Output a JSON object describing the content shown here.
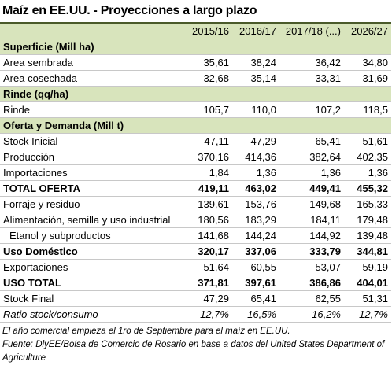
{
  "title": "Maíz en EE.UU. - Proyecciones a largo plazo",
  "columns": [
    "2015/16",
    "2016/17",
    "2017/18 (...)",
    "2026/27"
  ],
  "sections": [
    {
      "title": "Superficie (Mill ha)",
      "rows": [
        {
          "label": "Area sembrada",
          "values": [
            "35,61",
            "38,24",
            "36,42",
            "34,80"
          ]
        },
        {
          "label": "Area cosechada",
          "values": [
            "32,68",
            "35,14",
            "33,31",
            "31,69"
          ]
        }
      ]
    },
    {
      "title": "Rinde (qq/ha)",
      "rows": [
        {
          "label": "Rinde",
          "values": [
            "105,7",
            "110,0",
            "107,2",
            "118,5"
          ]
        }
      ]
    },
    {
      "title": "Oferta y Demanda (Mill t)",
      "rows": [
        {
          "label": "Stock Inicial",
          "values": [
            "47,11",
            "47,29",
            "65,41",
            "51,61"
          ]
        },
        {
          "label": "Producción",
          "values": [
            "370,16",
            "414,36",
            "382,64",
            "402,35"
          ]
        },
        {
          "label": "Importaciones",
          "values": [
            "1,84",
            "1,36",
            "1,36",
            "1,36"
          ]
        },
        {
          "label": "TOTAL OFERTA",
          "values": [
            "419,11",
            "463,02",
            "449,41",
            "455,32"
          ],
          "style": "bold"
        },
        {
          "label": "Forraje y residuo",
          "values": [
            "139,61",
            "153,76",
            "149,68",
            "165,33"
          ]
        },
        {
          "label": "Alimentación, semilla y uso industrial",
          "values": [
            "180,56",
            "183,29",
            "184,11",
            "179,48"
          ]
        },
        {
          "label": "Etanol y subproductos",
          "values": [
            "141,68",
            "144,24",
            "144,92",
            "139,48"
          ],
          "style": "indent"
        },
        {
          "label": "Uso Doméstico",
          "values": [
            "320,17",
            "337,06",
            "333,79",
            "344,81"
          ],
          "style": "bold"
        },
        {
          "label": "Exportaciones",
          "values": [
            "51,64",
            "60,55",
            "53,07",
            "59,19"
          ]
        },
        {
          "label": "USO TOTAL",
          "values": [
            "371,81",
            "397,61",
            "386,86",
            "404,01"
          ],
          "style": "bold"
        },
        {
          "label": "Stock Final",
          "values": [
            "47,29",
            "65,41",
            "62,55",
            "51,31"
          ]
        },
        {
          "label": "Ratio stock/consumo",
          "values": [
            "12,7%",
            "16,5%",
            "16,2%",
            "12,7%"
          ],
          "style": "italic"
        }
      ]
    }
  ],
  "notes": [
    "El año comercial empieza el 1ro de Septiembre para el maíz en EE.UU.",
    "Fuente: DlyEE/Bolsa de Comercio de Rosario en base a datos del United States Department of Agriculture"
  ]
}
